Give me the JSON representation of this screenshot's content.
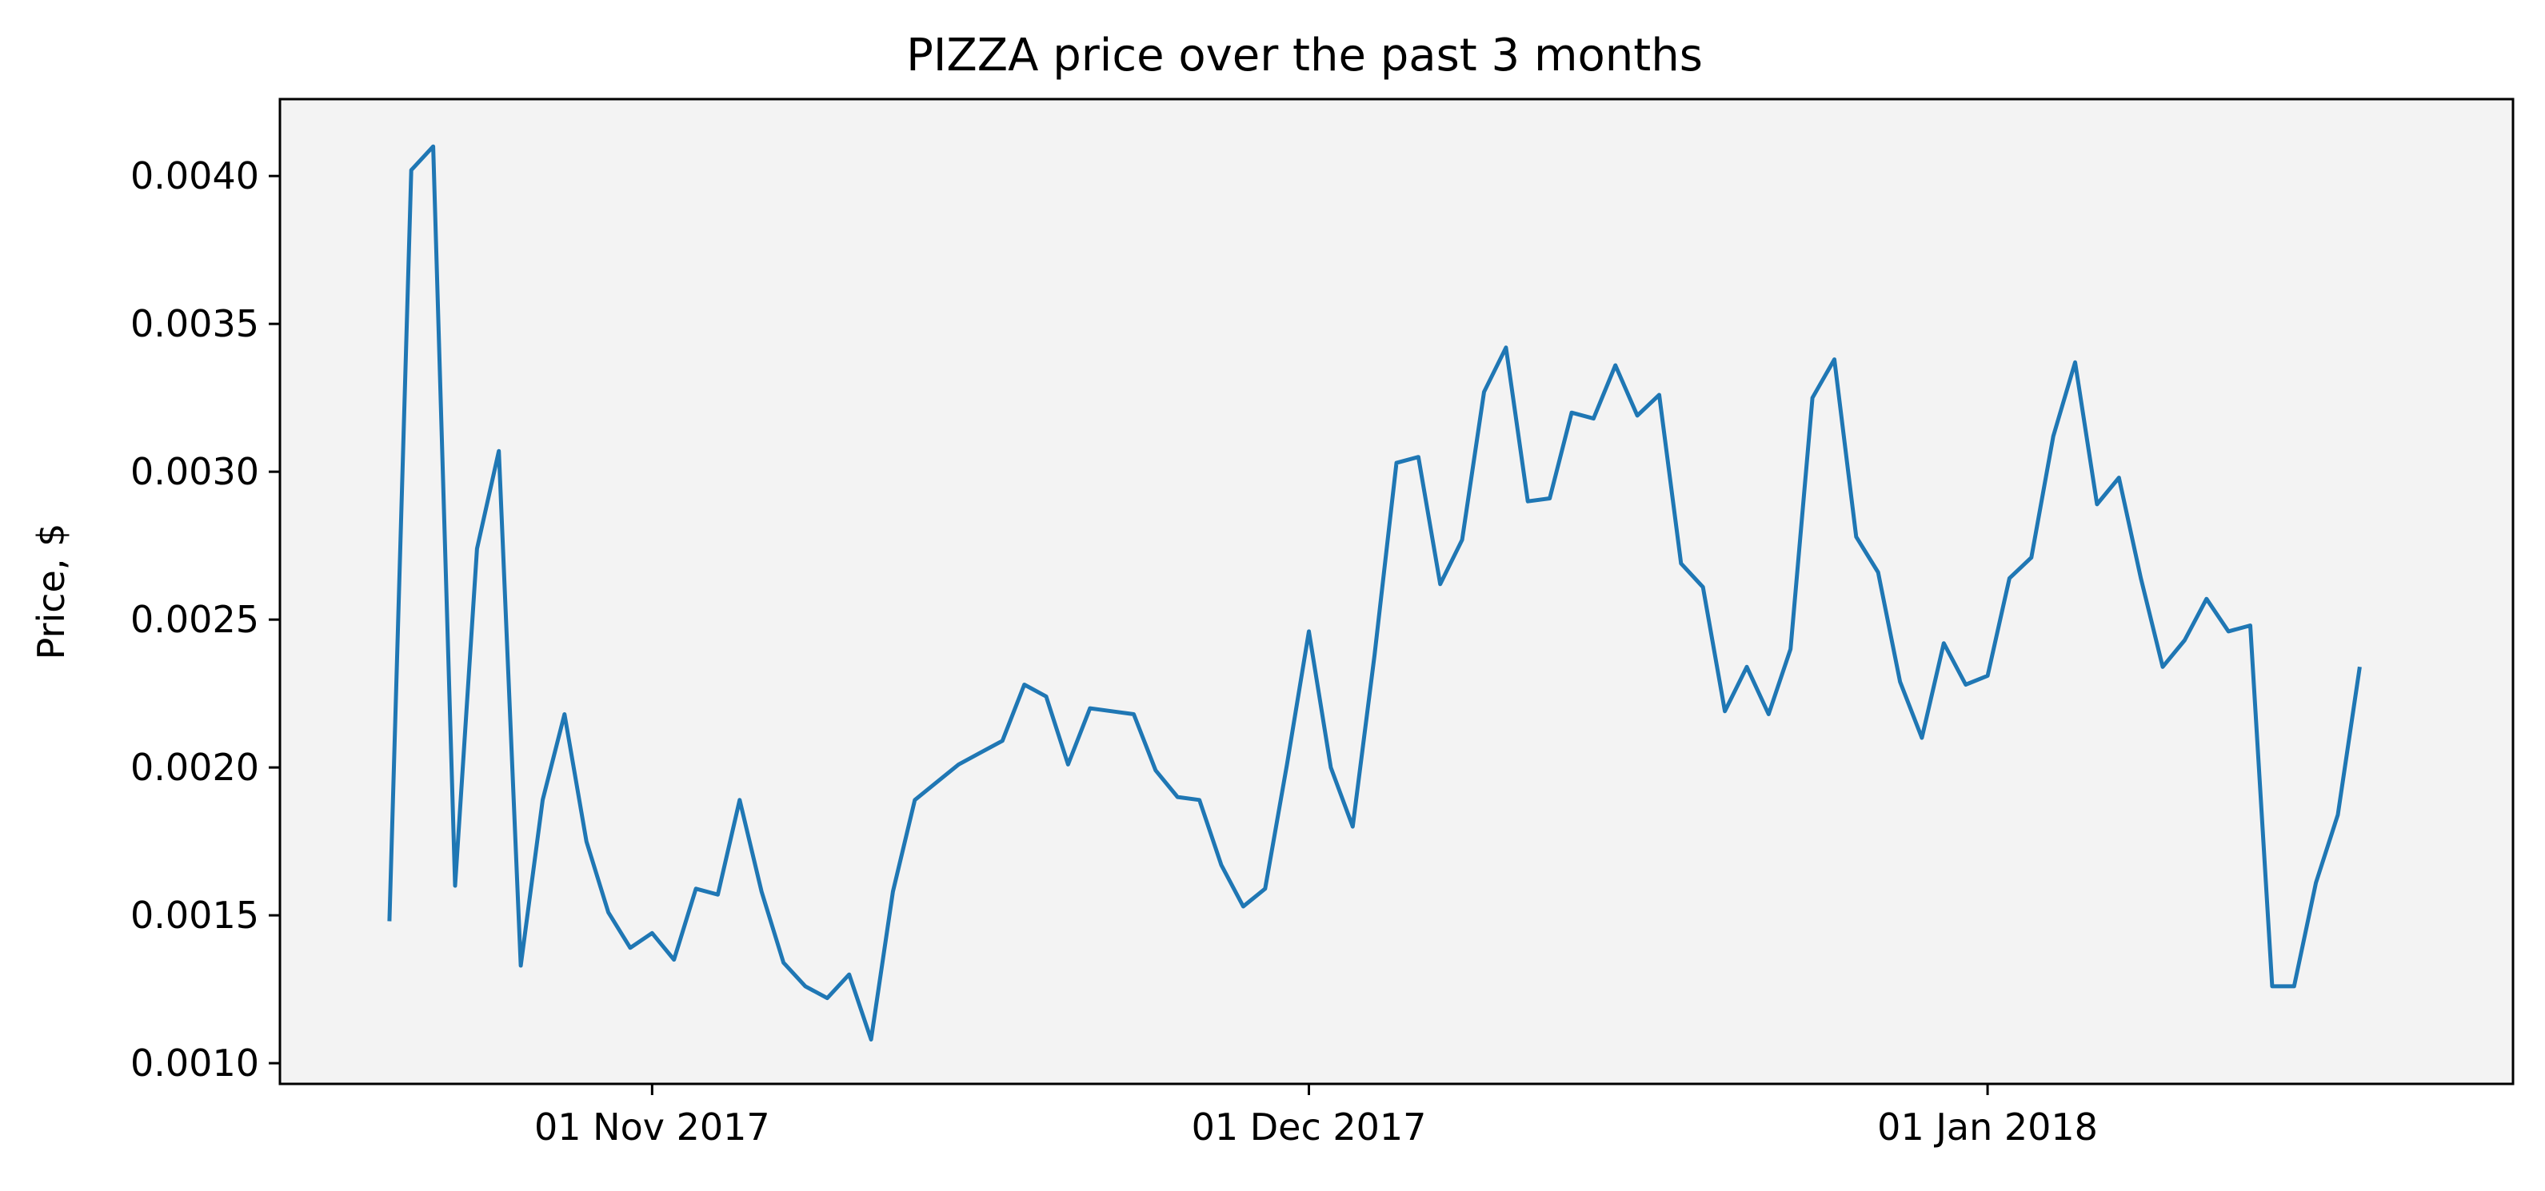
{
  "chart_data": {
    "type": "line",
    "title": "PIZZA price over the past 3 months",
    "xlabel": "",
    "ylabel": "Price, $",
    "background_color": "#f3f3f3",
    "line_color": "#1f77b4",
    "grid": false,
    "legend": "none",
    "xlim": [
      "2017-10-15",
      "2018-01-25"
    ],
    "ylim": [
      0.00093,
      0.00426
    ],
    "x_ticks": [
      {
        "date": "2017-11-01",
        "label": "01 Nov 2017"
      },
      {
        "date": "2017-12-01",
        "label": "01 Dec 2017"
      },
      {
        "date": "2018-01-01",
        "label": "01 Jan 2018"
      }
    ],
    "y_ticks": [
      {
        "value": 0.001,
        "label": "0.0010"
      },
      {
        "value": 0.0015,
        "label": "0.0015"
      },
      {
        "value": 0.002,
        "label": "0.0020"
      },
      {
        "value": 0.0025,
        "label": "0.0025"
      },
      {
        "value": 0.003,
        "label": "0.0030"
      },
      {
        "value": 0.0035,
        "label": "0.0035"
      },
      {
        "value": 0.004,
        "label": "0.0040"
      }
    ],
    "series": [
      {
        "points": [
          [
            "2017-10-20",
            0.00148
          ],
          [
            "2017-10-21",
            0.00402
          ],
          [
            "2017-10-22",
            0.0041
          ],
          [
            "2017-10-23",
            0.0016
          ],
          [
            "2017-10-24",
            0.00274
          ],
          [
            "2017-10-25",
            0.00307
          ],
          [
            "2017-10-26",
            0.00133
          ],
          [
            "2017-10-27",
            0.00189
          ],
          [
            "2017-10-28",
            0.00218
          ],
          [
            "2017-10-29",
            0.00175
          ],
          [
            "2017-10-30",
            0.00151
          ],
          [
            "2017-10-31",
            0.00139
          ],
          [
            "2017-11-01",
            0.00144
          ],
          [
            "2017-11-02",
            0.00135
          ],
          [
            "2017-11-03",
            0.00159
          ],
          [
            "2017-11-04",
            0.00157
          ],
          [
            "2017-11-05",
            0.00189
          ],
          [
            "2017-11-06",
            0.00158
          ],
          [
            "2017-11-07",
            0.00134
          ],
          [
            "2017-11-08",
            0.00126
          ],
          [
            "2017-11-09",
            0.00122
          ],
          [
            "2017-11-10",
            0.0013
          ],
          [
            "2017-11-11",
            0.00108
          ],
          [
            "2017-11-12",
            0.00158
          ],
          [
            "2017-11-13",
            0.00189
          ],
          [
            "2017-11-14",
            0.00195
          ],
          [
            "2017-11-15",
            0.00201
          ],
          [
            "2017-11-16",
            0.00205
          ],
          [
            "2017-11-17",
            0.00209
          ],
          [
            "2017-11-18",
            0.00228
          ],
          [
            "2017-11-19",
            0.00224
          ],
          [
            "2017-11-20",
            0.00201
          ],
          [
            "2017-11-21",
            0.0022
          ],
          [
            "2017-11-22",
            0.00219
          ],
          [
            "2017-11-23",
            0.00218
          ],
          [
            "2017-11-24",
            0.00199
          ],
          [
            "2017-11-25",
            0.0019
          ],
          [
            "2017-11-26",
            0.00189
          ],
          [
            "2017-11-27",
            0.00167
          ],
          [
            "2017-11-28",
            0.00153
          ],
          [
            "2017-11-29",
            0.00159
          ],
          [
            "2017-11-30",
            0.00201
          ],
          [
            "2017-12-01",
            0.00246
          ],
          [
            "2017-12-02",
            0.002
          ],
          [
            "2017-12-03",
            0.0018
          ],
          [
            "2017-12-04",
            0.00238
          ],
          [
            "2017-12-05",
            0.00303
          ],
          [
            "2017-12-06",
            0.00305
          ],
          [
            "2017-12-07",
            0.00262
          ],
          [
            "2017-12-08",
            0.00277
          ],
          [
            "2017-12-09",
            0.00327
          ],
          [
            "2017-12-10",
            0.00342
          ],
          [
            "2017-12-11",
            0.0029
          ],
          [
            "2017-12-12",
            0.00291
          ],
          [
            "2017-12-13",
            0.0032
          ],
          [
            "2017-12-14",
            0.00318
          ],
          [
            "2017-12-15",
            0.00336
          ],
          [
            "2017-12-16",
            0.00319
          ],
          [
            "2017-12-17",
            0.00326
          ],
          [
            "2017-12-18",
            0.00269
          ],
          [
            "2017-12-19",
            0.00261
          ],
          [
            "2017-12-20",
            0.00219
          ],
          [
            "2017-12-21",
            0.00234
          ],
          [
            "2017-12-22",
            0.00218
          ],
          [
            "2017-12-23",
            0.0024
          ],
          [
            "2017-12-24",
            0.00325
          ],
          [
            "2017-12-25",
            0.00338
          ],
          [
            "2017-12-26",
            0.00278
          ],
          [
            "2017-12-27",
            0.00266
          ],
          [
            "2017-12-28",
            0.00229
          ],
          [
            "2017-12-29",
            0.0021
          ],
          [
            "2017-12-30",
            0.00242
          ],
          [
            "2017-12-31",
            0.00228
          ],
          [
            "2018-01-01",
            0.00231
          ],
          [
            "2018-01-02",
            0.00264
          ],
          [
            "2018-01-03",
            0.00271
          ],
          [
            "2018-01-04",
            0.00312
          ],
          [
            "2018-01-05",
            0.00337
          ],
          [
            "2018-01-06",
            0.00289
          ],
          [
            "2018-01-07",
            0.00298
          ],
          [
            "2018-01-08",
            0.00264
          ],
          [
            "2018-01-09",
            0.00234
          ],
          [
            "2018-01-10",
            0.00243
          ],
          [
            "2018-01-11",
            0.00257
          ],
          [
            "2018-01-12",
            0.00246
          ],
          [
            "2018-01-13",
            0.00248
          ],
          [
            "2018-01-14",
            0.00126
          ],
          [
            "2018-01-15",
            0.00126
          ],
          [
            "2018-01-16",
            0.00161
          ],
          [
            "2018-01-17",
            0.00184
          ],
          [
            "2018-01-18",
            0.00234
          ]
        ]
      }
    ]
  }
}
